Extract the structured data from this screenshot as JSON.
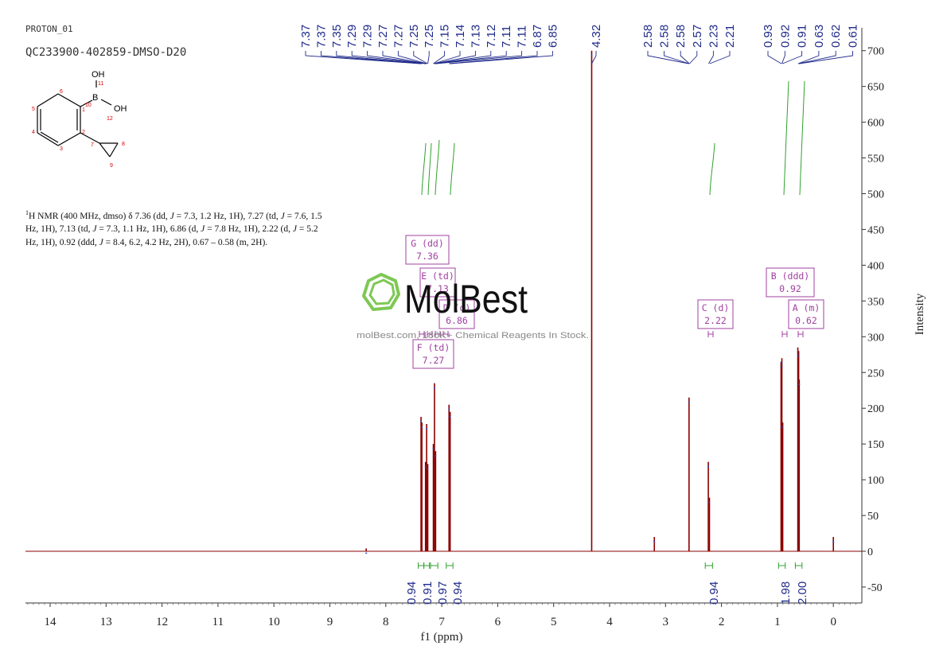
{
  "header": {
    "label": "PROTON_01",
    "sample": "QC233900-402859-DMSO-D20"
  },
  "description": {
    "sup": "1",
    "nucleus": "H NMR (400 MHz, dmso) δ 7.36 (dd, ",
    "j1": "J",
    "t1": " = 7.3, 1.2 Hz, 1H), 7.27 (td, ",
    "j2": "J",
    "t2": " = 7.6, 1.5 Hz, 1H), 7.13 (td, ",
    "j3": "J",
    "t3": " = 7.3, 1.1 Hz, 1H), 6.86 (d, ",
    "j4": "J",
    "t4": " = 7.8 Hz, 1H), 2.22 (d, ",
    "j5": "J",
    "t5": " = 5.2 Hz, 1H), 0.92 (ddd, ",
    "j6": "J",
    "t6": " = 8.4, 6.2, 4.2 Hz, 2H), 0.67 – 0.58 (m, 2H)."
  },
  "structure": {
    "atoms": [
      "OH",
      "11",
      "B",
      "10",
      "OH",
      "12",
      "1",
      "2",
      "3",
      "4",
      "5",
      "6",
      "7",
      "8",
      "9"
    ]
  },
  "watermark": {
    "brand": "MolBest",
    "tagline": "molBest.com, 180K+ Chemical Reagents In Stock."
  },
  "chart_data": {
    "type": "line",
    "xlabel": "f1 (ppm)",
    "ylabel": "Intensity",
    "xlim": [
      14.5,
      -0.4
    ],
    "ylim": [
      -75,
      720
    ],
    "x_ticks": [
      14,
      13,
      12,
      11,
      10,
      9,
      8,
      7,
      6,
      5,
      4,
      3,
      2,
      1,
      0
    ],
    "y_ticks": [
      -50,
      0,
      50,
      100,
      150,
      200,
      250,
      300,
      350,
      400,
      450,
      500,
      550,
      600,
      650,
      700
    ],
    "peaks": [
      {
        "ppm": 7.37,
        "height": 188
      },
      {
        "ppm": 7.355,
        "height": 180
      },
      {
        "ppm": 7.29,
        "height": 125
      },
      {
        "ppm": 7.27,
        "height": 178
      },
      {
        "ppm": 7.25,
        "height": 122
      },
      {
        "ppm": 7.15,
        "height": 150
      },
      {
        "ppm": 7.13,
        "height": 235
      },
      {
        "ppm": 7.11,
        "height": 140
      },
      {
        "ppm": 6.87,
        "height": 205
      },
      {
        "ppm": 6.85,
        "height": 195
      },
      {
        "ppm": 4.32,
        "height": 700
      },
      {
        "ppm": 2.58,
        "height": 215
      },
      {
        "ppm": 2.235,
        "height": 125
      },
      {
        "ppm": 2.215,
        "height": 75
      },
      {
        "ppm": 0.935,
        "height": 265
      },
      {
        "ppm": 0.92,
        "height": 270
      },
      {
        "ppm": 0.905,
        "height": 180
      },
      {
        "ppm": 0.635,
        "height": 285
      },
      {
        "ppm": 0.62,
        "height": 280
      },
      {
        "ppm": 0.61,
        "height": 240
      },
      {
        "ppm": 3.2,
        "height": 20
      },
      {
        "ppm": 0.0,
        "height": 20
      },
      {
        "ppm": 8.35,
        "height": 4
      }
    ],
    "peak_labels_group1": [
      "7.37",
      "7.37",
      "7.35",
      "7.29",
      "7.29",
      "7.27",
      "7.27",
      "7.25",
      "7.25",
      "7.15",
      "7.14",
      "7.13",
      "7.12",
      "7.11",
      "7.11",
      "6.87",
      "6.85"
    ],
    "peak_labels_group1_ppm": [
      7.37,
      7.365,
      7.355,
      7.29,
      7.285,
      7.275,
      7.27,
      7.255,
      7.25,
      7.15,
      7.14,
      7.13,
      7.12,
      7.11,
      7.105,
      6.87,
      6.85
    ],
    "peak_labels_group2": [
      "4.32"
    ],
    "peak_labels_group2_ppm": [
      4.32
    ],
    "peak_labels_group3": [
      "2.58",
      "2.58",
      "2.58",
      "2.57",
      "2.23",
      "2.21"
    ],
    "peak_labels_group3_ppm": [
      2.585,
      2.58,
      2.575,
      2.57,
      2.23,
      2.21
    ],
    "peak_labels_group4": [
      "0.93",
      "0.92",
      "0.91",
      "0.63",
      "0.62",
      "0.61"
    ],
    "peak_labels_group4_ppm": [
      0.93,
      0.92,
      0.91,
      0.63,
      0.62,
      0.61
    ],
    "multiplets": [
      {
        "id": "G",
        "mult": "dd",
        "ppm": "7.36"
      },
      {
        "id": "E",
        "mult": "td",
        "ppm": "7.13"
      },
      {
        "id": "D",
        "mult": "d",
        "ppm": "6.86"
      },
      {
        "id": "F",
        "mult": "td",
        "ppm": "7.27"
      },
      {
        "id": "C",
        "mult": "d",
        "ppm": "2.22"
      },
      {
        "id": "B",
        "mult": "ddd",
        "ppm": "0.92"
      },
      {
        "id": "A",
        "mult": "m",
        "ppm": "0.62"
      }
    ],
    "integrals": [
      {
        "from": 7.42,
        "to": 7.32,
        "value": "0.94"
      },
      {
        "from": 7.32,
        "to": 7.22,
        "value": "0.91"
      },
      {
        "from": 7.2,
        "to": 7.07,
        "value": "0.97"
      },
      {
        "from": 6.92,
        "to": 6.8,
        "value": "0.94"
      },
      {
        "from": 2.29,
        "to": 2.16,
        "value": "0.94"
      },
      {
        "from": 0.98,
        "to": 0.86,
        "value": "1.98"
      },
      {
        "from": 0.68,
        "to": 0.56,
        "value": "2.00"
      }
    ],
    "colors": {
      "spectrum": "#8b0000",
      "peak_label": "#1f2a8a",
      "integral": "#2ea12e",
      "multiplet": "#a040a0",
      "watermark": "#6cc04a"
    }
  }
}
